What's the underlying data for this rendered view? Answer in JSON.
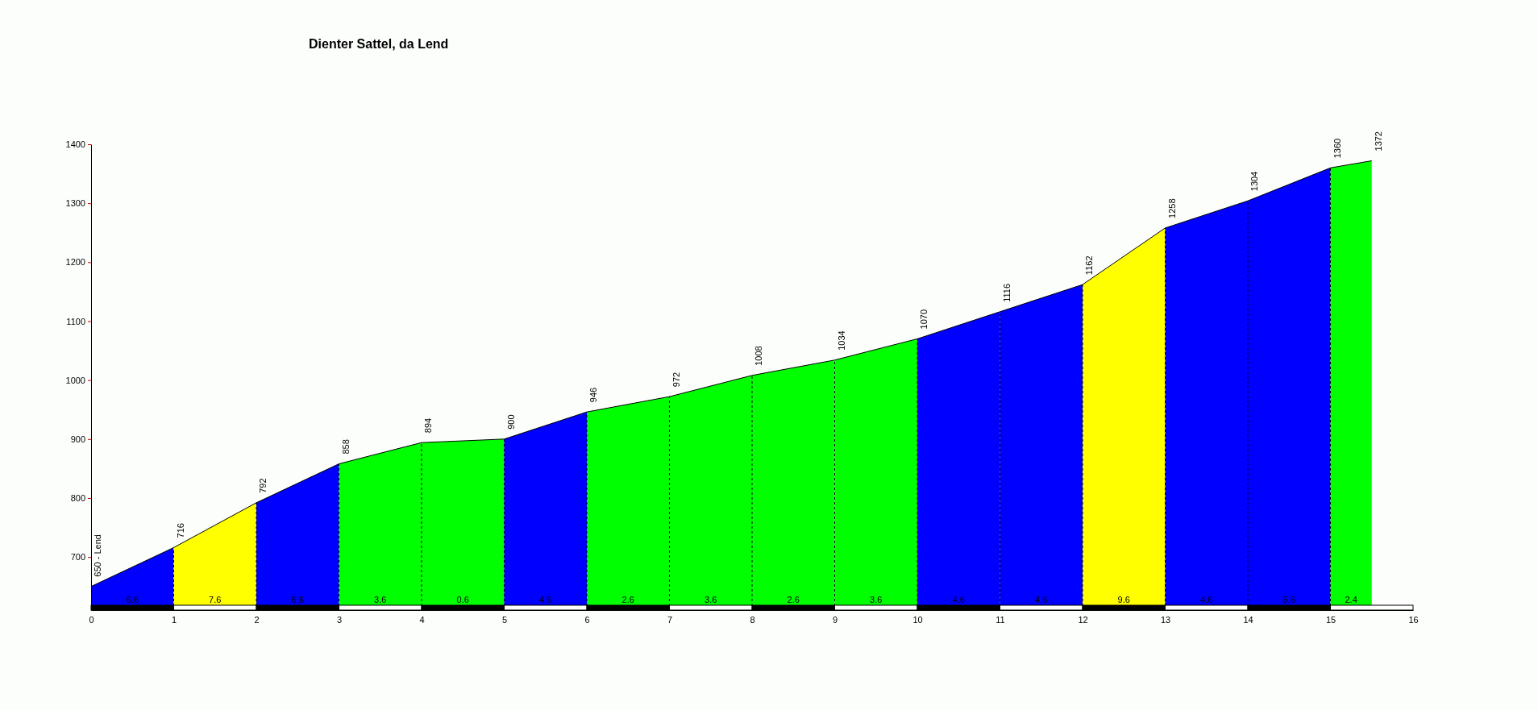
{
  "chart_data": {
    "type": "area",
    "title": "Dienter Sattel, da Lend",
    "series": [
      {
        "x": [
          0,
          1
        ],
        "values": [
          650,
          716
        ],
        "value_labels": [
          "650 - Lend",
          null
        ],
        "color": "#0000ff"
      },
      {
        "x": [
          1,
          2
        ],
        "values": [
          716,
          792
        ],
        "value_labels": [
          "716",
          null
        ],
        "color": "#ffff00"
      },
      {
        "x": [
          2,
          3
        ],
        "values": [
          792,
          858
        ],
        "value_labels": [
          "792",
          null
        ],
        "color": "#0000ff"
      },
      {
        "x": [
          3,
          4
        ],
        "values": [
          858,
          894
        ],
        "value_labels": [
          "858",
          null
        ],
        "color": "#00ff00"
      },
      {
        "x": [
          4,
          5
        ],
        "values": [
          894,
          900
        ],
        "value_labels": [
          "894",
          null
        ],
        "color": "#00ff00"
      },
      {
        "x": [
          5,
          6
        ],
        "values": [
          900,
          946
        ],
        "value_labels": [
          "900",
          null
        ],
        "color": "#0000ff"
      },
      {
        "x": [
          6,
          7
        ],
        "values": [
          946,
          972
        ],
        "value_labels": [
          "946",
          null
        ],
        "color": "#00ff00"
      },
      {
        "x": [
          7,
          8
        ],
        "values": [
          972,
          1008
        ],
        "value_labels": [
          "972",
          null
        ],
        "color": "#00ff00"
      },
      {
        "x": [
          8,
          9
        ],
        "values": [
          1008,
          1034
        ],
        "value_labels": [
          "1008",
          null
        ],
        "color": "#00ff00"
      },
      {
        "x": [
          9,
          10
        ],
        "values": [
          1034,
          1070
        ],
        "value_labels": [
          "1034",
          null
        ],
        "color": "#00ff00"
      },
      {
        "x": [
          10,
          11
        ],
        "values": [
          1070,
          1116
        ],
        "value_labels": [
          "1070",
          null
        ],
        "color": "#0000ff"
      },
      {
        "x": [
          11,
          12
        ],
        "values": [
          1116,
          1162
        ],
        "value_labels": [
          "1116",
          null
        ],
        "color": "#0000ff"
      },
      {
        "x": [
          12,
          13
        ],
        "values": [
          1162,
          1258
        ],
        "value_labels": [
          "1162",
          null
        ],
        "color": "#ffff00"
      },
      {
        "x": [
          13,
          14
        ],
        "values": [
          1258,
          1304
        ],
        "value_labels": [
          "1258",
          null
        ],
        "color": "#0000ff"
      },
      {
        "x": [
          14,
          15
        ],
        "values": [
          1304,
          1360
        ],
        "value_labels": [
          "1304",
          null
        ],
        "color": "#0000ff"
      },
      {
        "x": [
          15,
          15.5
        ],
        "values": [
          1360,
          1372
        ],
        "value_labels": [
          "1360",
          "1372"
        ],
        "color": "#00ff00"
      }
    ],
    "annotations": [
      "6.6",
      "7.6",
      "6.6",
      "3.6",
      "0.6",
      "4.6",
      "2.6",
      "3.6",
      "2.6",
      "3.6",
      "4.6",
      "4.6",
      "9.6",
      "4.6",
      "5.6",
      "2.4"
    ],
    "xlim": [
      0,
      16
    ],
    "xticks": [
      0,
      1,
      2,
      3,
      4,
      5,
      6,
      7,
      8,
      9,
      10,
      11,
      12,
      13,
      14,
      15,
      16
    ],
    "ylim": [
      610,
      1400
    ],
    "yticks": [
      700,
      800,
      900,
      1000,
      1100,
      1200,
      1300,
      1400
    ],
    "grid": "x"
  }
}
